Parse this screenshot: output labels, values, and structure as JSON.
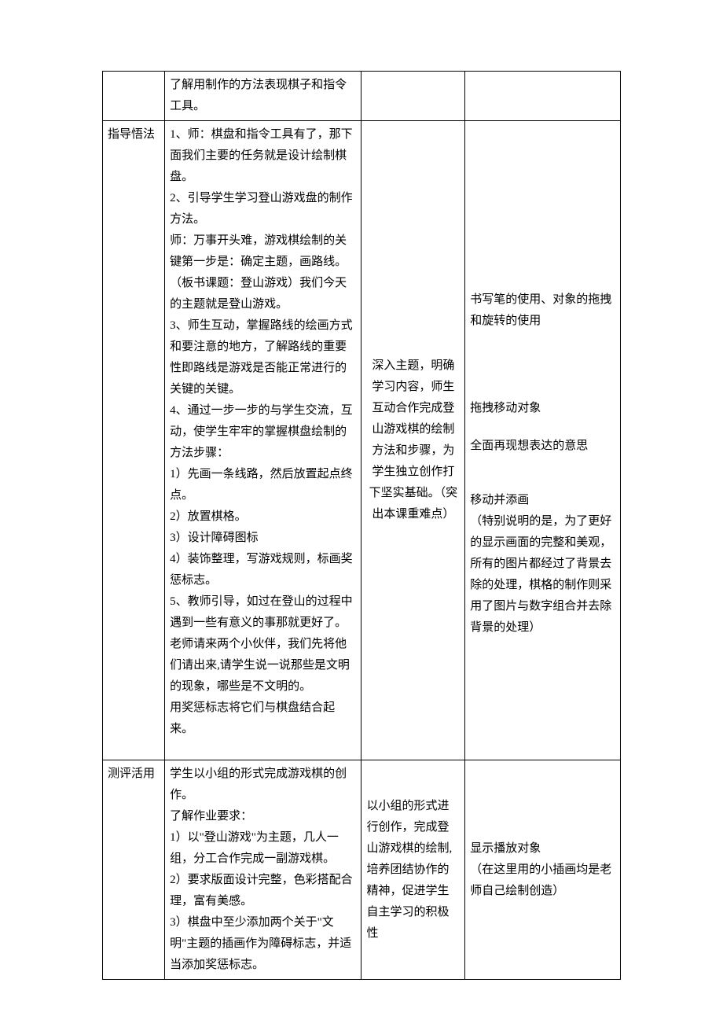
{
  "table": {
    "border_color": "#000000",
    "background_color": "#ffffff",
    "text_color": "#000000",
    "font_family": "SimSun",
    "font_size_pt": 11,
    "rows": [
      {
        "c1": "",
        "c2": "了解用制作的方法表现棋子和指令工具。",
        "c3": "",
        "c4": ""
      },
      {
        "c1": "指导悟法",
        "c2_parts": [
          "1、师：棋盘和指令工具有了，那下面我们主要的任务就是设计绘制棋盘。",
          "2、引导学生学习登山游戏盘的制作方法。",
          "师：万事开头难，游戏棋绘制的关键第一步是：确定主题，画路线。",
          "（板书课题：登山游戏）我们今天的主题就是登山游戏。",
          "3、师生互动，掌握路线的绘画方式和要注意的地方，了解路线的重要性即路线是游戏是否能正常进行的关键的关键。",
          "4、通过一步一步的与学生交流，互动，使学生牢牢的掌握棋盘绘制的方法步骤：",
          "1）先画一条线路，然后放置起点终点。",
          "2）放置棋格。",
          "3）设计障碍图标",
          "4）装饰整理，写游戏规则，标画奖惩标志。",
          "5、教师引导，如过在登山的过程中遇到一些有意义的事那就更好了。老师请来两个小伙伴，我们先将他们请出来,请学生说一说那些是文明的现象，哪些是不文明的。",
          "用奖惩标志将它们与棋盘结合起来。"
        ],
        "c3": "深入主题，明确学习内容，师生互动合作完成登山游戏棋的绘制方法和步骤，为学生独立创作打下坚实基础。（突出本课重难点）",
        "c4_block1": "书写笔的使用、对象的拖拽和旋转的使用",
        "c4_block2": "拖拽移动对象",
        "c4_block3": "全面再现想表达的意思",
        "c4_block4": "移动并添画\n（特别说明的是，为了更好的显示画面的完整和美观，所有的图片都经过了背景去除的处理，棋格的制作则采用了图片与数字组合并去除背景的处理）"
      },
      {
        "c1": "测评活用",
        "c2_parts": [
          "学生以小组的形式完成游戏棋的创作。",
          "了解作业要求：",
          "1）以\"登山游戏\"为主题，几人一组，分工合作完成一副游戏棋。",
          "2）要求版面设计完整，色彩搭配合理，富有美感。",
          "3）棋盘中至少添加两个关于\"文明\"主题的插画作为障碍标志，并适当添加奖惩标志。"
        ],
        "c3": "以小组的形式进行创作，完成登山游戏棋的绘制,培养团结协作的精神，促进学生自主学习的积极性",
        "c4": "显示播放对象\n（在这里用的小插画均是老师自己绘制创造）"
      }
    ]
  }
}
